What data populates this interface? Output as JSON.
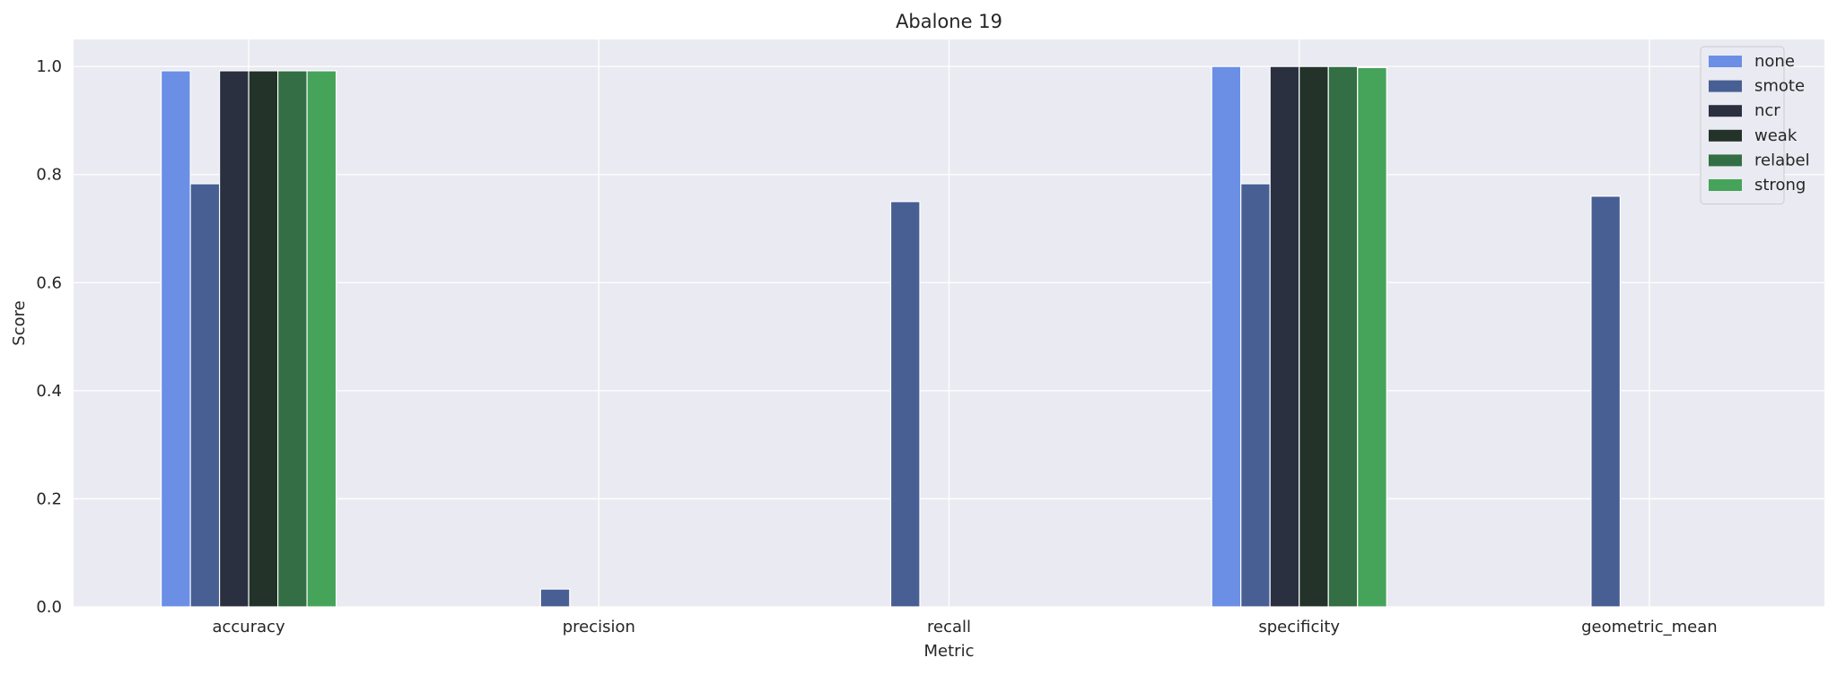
{
  "chart_data": {
    "type": "bar",
    "title": "Abalone 19",
    "xlabel": "Metric",
    "ylabel": "Score",
    "ylim": [
      0,
      1.05
    ],
    "yticks": [
      "0.0",
      "0.2",
      "0.4",
      "0.6",
      "0.8",
      "1.0"
    ],
    "grid": true,
    "legend_position": "top-right",
    "categories": [
      "accuracy",
      "precision",
      "recall",
      "specificity",
      "geometric_mean"
    ],
    "series": [
      {
        "name": "none",
        "color": "#6a8fe5",
        "values": [
          0.992,
          0.0,
          0.0,
          1.0,
          0.0
        ]
      },
      {
        "name": "smote",
        "color": "#485f94",
        "values": [
          0.783,
          0.033,
          0.75,
          0.783,
          0.76
        ]
      },
      {
        "name": "ncr",
        "color": "#2a3040",
        "values": [
          0.992,
          0.0,
          0.0,
          1.0,
          0.0
        ]
      },
      {
        "name": "weak",
        "color": "#23332a",
        "values": [
          0.992,
          0.0,
          0.0,
          1.0,
          0.0
        ]
      },
      {
        "name": "relabel",
        "color": "#336e44",
        "values": [
          0.992,
          0.0,
          0.0,
          1.0,
          0.0
        ]
      },
      {
        "name": "strong",
        "color": "#46a35a",
        "values": [
          0.992,
          0.0,
          0.0,
          0.998,
          0.0
        ]
      }
    ]
  }
}
